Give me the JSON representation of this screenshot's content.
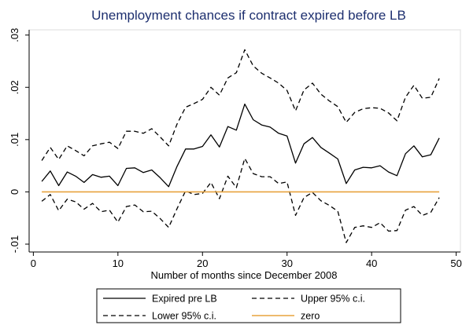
{
  "chart_data": {
    "type": "line",
    "title": "Unemployment chances if contract expired before LB",
    "xlabel": "Number of months since December 2008",
    "ylabel": "",
    "xlim": [
      -0.5,
      50.5
    ],
    "ylim": [
      -0.0115,
      0.031
    ],
    "xticks": [
      0,
      10,
      20,
      30,
      40,
      50
    ],
    "xtick_labels": [
      "0",
      "10",
      "20",
      "30",
      "40",
      "50"
    ],
    "yticks": [
      -0.01,
      0,
      0.01,
      0.02,
      0.03
    ],
    "ytick_labels": [
      "-.01",
      "0",
      ".01",
      ".02",
      ".03"
    ],
    "grid": false,
    "legend_position": "bottom",
    "x": [
      1,
      2,
      3,
      4,
      5,
      6,
      7,
      8,
      9,
      10,
      11,
      12,
      13,
      14,
      15,
      16,
      17,
      18,
      19,
      20,
      21,
      22,
      23,
      24,
      25,
      26,
      27,
      28,
      29,
      30,
      31,
      32,
      33,
      34,
      35,
      36,
      37,
      38,
      39,
      40,
      41,
      42,
      43,
      44,
      45,
      46,
      47,
      48
    ],
    "series": [
      {
        "name": "Expired pre LB",
        "style": "solid",
        "color": "#000000",
        "values": [
          0.002,
          0.004,
          0.0012,
          0.0038,
          0.003,
          0.0018,
          0.0033,
          0.0028,
          0.003,
          0.0012,
          0.0045,
          0.0046,
          0.0037,
          0.0042,
          0.0027,
          0.001,
          0.0049,
          0.0082,
          0.0082,
          0.0087,
          0.0109,
          0.0086,
          0.0125,
          0.0118,
          0.0168,
          0.0138,
          0.0128,
          0.0124,
          0.0112,
          0.0107,
          0.0055,
          0.0092,
          0.0104,
          0.0085,
          0.0074,
          0.0063,
          0.0016,
          0.0042,
          0.0047,
          0.0046,
          0.005,
          0.0038,
          0.0031,
          0.0073,
          0.0088,
          0.0067,
          0.0071,
          0.0103
        ]
      },
      {
        "name": "Upper 95% c.i.",
        "style": "dashed",
        "color": "#000000",
        "values": [
          0.006,
          0.0085,
          0.0062,
          0.0088,
          0.0079,
          0.0069,
          0.0088,
          0.0092,
          0.0095,
          0.0083,
          0.0116,
          0.0116,
          0.0112,
          0.0121,
          0.0105,
          0.0088,
          0.013,
          0.0162,
          0.0169,
          0.0177,
          0.02,
          0.0185,
          0.0218,
          0.0228,
          0.0272,
          0.0241,
          0.0227,
          0.0218,
          0.0208,
          0.0194,
          0.0155,
          0.0195,
          0.0208,
          0.0187,
          0.0174,
          0.0163,
          0.0133,
          0.0152,
          0.0159,
          0.0161,
          0.016,
          0.0151,
          0.0136,
          0.0181,
          0.0204,
          0.0179,
          0.0181,
          0.0217
        ]
      },
      {
        "name": "Lower 95% c.i.",
        "style": "dashed",
        "color": "#000000",
        "values": [
          -0.0018,
          -0.0005,
          -0.0036,
          -0.0014,
          -0.0019,
          -0.0033,
          -0.0022,
          -0.0038,
          -0.0035,
          -0.0058,
          -0.0028,
          -0.0025,
          -0.0038,
          -0.0037,
          -0.0051,
          -0.0068,
          -0.0032,
          0.0002,
          -0.0005,
          -0.0003,
          0.0018,
          -0.0013,
          0.003,
          0.0008,
          0.0064,
          0.0035,
          0.0029,
          0.0029,
          0.0016,
          0.0019,
          -0.0045,
          -0.0011,
          -0.0001,
          -0.0017,
          -0.0026,
          -0.0037,
          -0.0097,
          -0.0068,
          -0.0065,
          -0.0068,
          -0.0059,
          -0.0075,
          -0.0074,
          -0.0035,
          -0.0028,
          -0.0045,
          -0.0039,
          -0.0011
        ]
      },
      {
        "name": "zero",
        "style": "solid",
        "color": "#e8a33d",
        "values": [
          0,
          0,
          0,
          0,
          0,
          0,
          0,
          0,
          0,
          0,
          0,
          0,
          0,
          0,
          0,
          0,
          0,
          0,
          0,
          0,
          0,
          0,
          0,
          0,
          0,
          0,
          0,
          0,
          0,
          0,
          0,
          0,
          0,
          0,
          0,
          0,
          0,
          0,
          0,
          0,
          0,
          0,
          0,
          0,
          0,
          0,
          0,
          0
        ]
      }
    ],
    "legend": [
      {
        "label": "Expired pre LB",
        "style": "solid",
        "color": "#000000"
      },
      {
        "label": "Upper 95% c.i.",
        "style": "dashed",
        "color": "#000000"
      },
      {
        "label": "Lower 95% c.i.",
        "style": "dashed",
        "color": "#000000"
      },
      {
        "label": "zero",
        "style": "solid",
        "color": "#e8a33d"
      }
    ]
  }
}
